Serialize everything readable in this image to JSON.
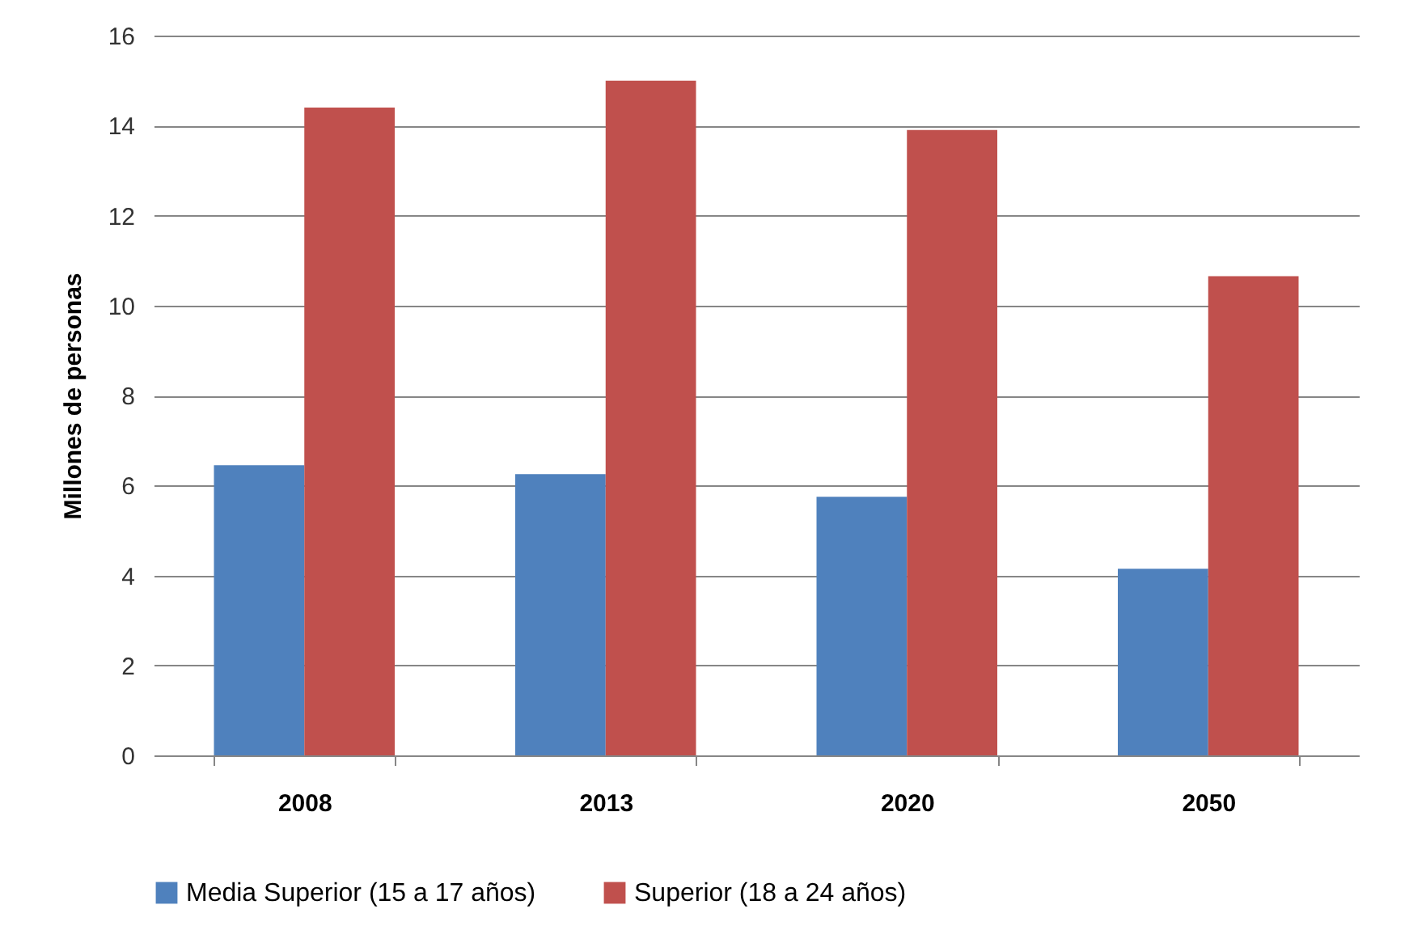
{
  "chart_data": {
    "type": "bar",
    "ylabel": "Millones de personas",
    "categories": [
      "2008",
      "2013",
      "2020",
      "2050"
    ],
    "series": [
      {
        "name": "Media Superior (15 a 17 años)",
        "color": "#4f81bd",
        "values": [
          6.45,
          6.25,
          5.75,
          4.15
        ]
      },
      {
        "name": "Superior (18 a 24 años)",
        "color": "#c0504d",
        "values": [
          14.4,
          15.0,
          13.9,
          10.65
        ]
      }
    ],
    "ylim": [
      0,
      16
    ],
    "yticks": [
      0,
      2,
      4,
      6,
      8,
      10,
      12,
      14,
      16
    ],
    "grid": "y",
    "legend": "bottom"
  }
}
